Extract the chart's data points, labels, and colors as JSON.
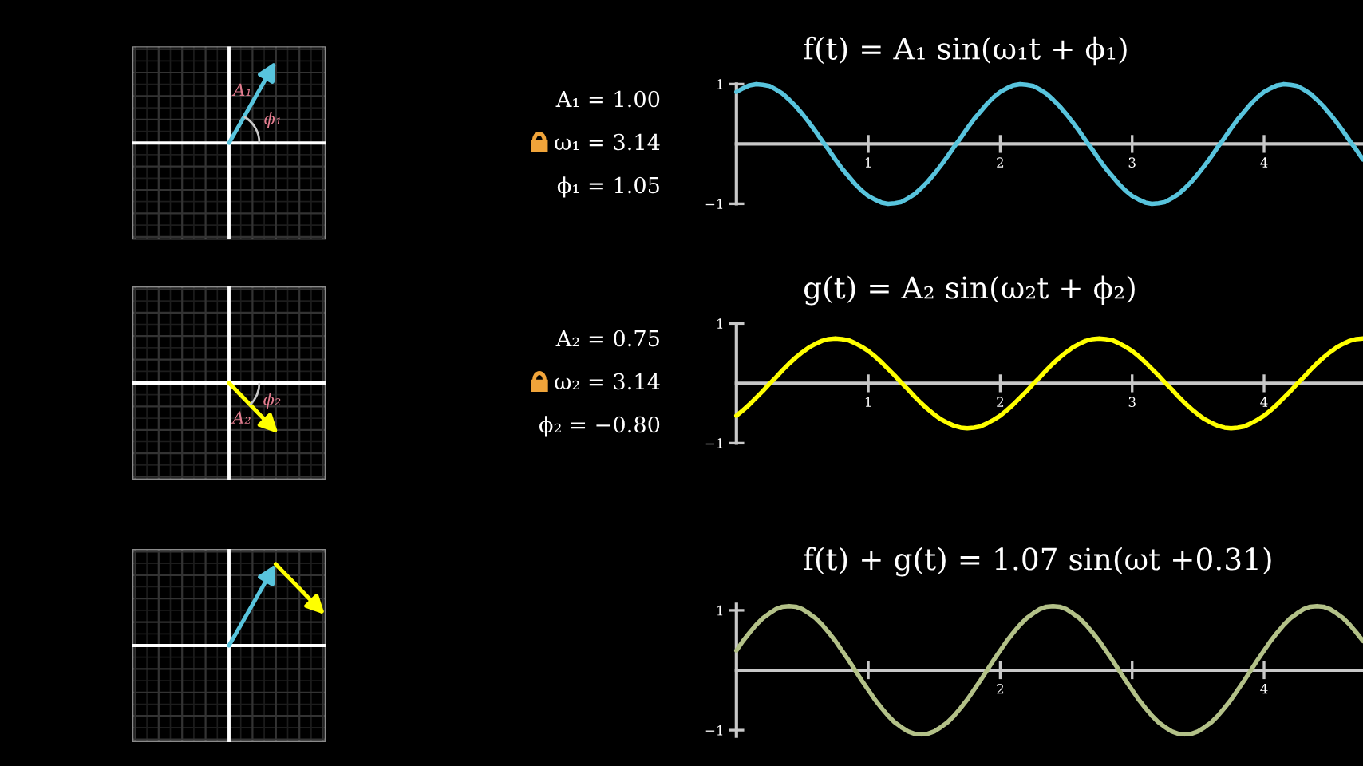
{
  "chart_data": [
    {
      "type": "other",
      "annotations": [
        "A₁",
        "ϕ₁"
      ]
    },
    {
      "type": "line",
      "title": "f(t) = A₁ sin(ω₁t + ϕ₁)",
      "annotations": [
        "A₁ = 1.00",
        "ω₁ = 3.14",
        "ϕ₁ = 1.05"
      ],
      "x": [
        0,
        0.05,
        0.1,
        0.15,
        0.2,
        0.25,
        0.3,
        0.35,
        0.4,
        0.45,
        0.5,
        0.55,
        0.6,
        0.65,
        0.7,
        0.75,
        0.8,
        0.85,
        0.9,
        0.95,
        1,
        1.05,
        1.1,
        1.15,
        1.2,
        1.25,
        1.3,
        1.35,
        1.4,
        1.45,
        1.5,
        1.55,
        1.6,
        1.65,
        1.7,
        1.75,
        1.8,
        1.85,
        1.9,
        1.95,
        2,
        2.05,
        2.1,
        2.15,
        2.2,
        2.25,
        2.3,
        2.35,
        2.4,
        2.45,
        2.5,
        2.55,
        2.6,
        2.65,
        2.7,
        2.75,
        2.8,
        2.85,
        2.9,
        2.95,
        3,
        3.05,
        3.1,
        3.15,
        3.2,
        3.25,
        3.3,
        3.35,
        3.4,
        3.45,
        3.5,
        3.55,
        3.6,
        3.65,
        3.7,
        3.75,
        3.8,
        3.85,
        3.9,
        3.95,
        4,
        4.05,
        4.1,
        4.15,
        4.2,
        4.25,
        4.3,
        4.35,
        4.4,
        4.45,
        4.5,
        4.55,
        4.6,
        4.65,
        4.7,
        4.75
      ],
      "series": [
        {
          "color": "#58c4dd",
          "values": [
            0.87,
            0.93,
            0.98,
            1.0,
            0.99,
            0.97,
            0.91,
            0.84,
            0.74,
            0.63,
            0.5,
            0.36,
            0.21,
            0.05,
            -0.1,
            -0.26,
            -0.41,
            -0.54,
            -0.67,
            -0.78,
            -0.87,
            -0.93,
            -0.98,
            -1.0,
            -0.99,
            -0.97,
            -0.91,
            -0.84,
            -0.74,
            -0.63,
            -0.5,
            -0.36,
            -0.21,
            -0.05,
            0.1,
            0.26,
            0.41,
            0.54,
            0.67,
            0.78,
            0.87,
            0.93,
            0.98,
            1.0,
            0.99,
            0.97,
            0.91,
            0.84,
            0.74,
            0.63,
            0.5,
            0.36,
            0.21,
            0.05,
            -0.1,
            -0.26,
            -0.41,
            -0.54,
            -0.67,
            -0.78,
            -0.87,
            -0.93,
            -0.98,
            -1.0,
            -0.99,
            -0.97,
            -0.91,
            -0.84,
            -0.74,
            -0.63,
            -0.5,
            -0.36,
            -0.21,
            -0.05,
            0.1,
            0.26,
            0.41,
            0.54,
            0.67,
            0.78,
            0.87,
            0.93,
            0.98,
            1.0,
            0.99,
            0.97,
            0.91,
            0.84,
            0.74,
            0.63,
            0.5,
            0.36,
            0.21,
            0.05,
            -0.1,
            -0.26
          ]
        }
      ],
      "xlim": [
        0,
        4.75
      ],
      "ylim": [
        -1,
        1
      ],
      "xticks": [
        1,
        2,
        3,
        4
      ],
      "yticks": [
        -1,
        1
      ]
    },
    {
      "type": "other",
      "annotations": [
        "A₂",
        "ϕ₂"
      ]
    },
    {
      "type": "line",
      "title": "g(t) = A₂ sin(ω₂t + ϕ₂)",
      "annotations": [
        "A₂ = 0.75",
        "ω₂ = 3.14",
        "ϕ₂ = −0.80"
      ],
      "x": [
        0,
        0.05,
        0.1,
        0.15,
        0.2,
        0.25,
        0.3,
        0.35,
        0.4,
        0.45,
        0.5,
        0.55,
        0.6,
        0.65,
        0.7,
        0.75,
        0.8,
        0.85,
        0.9,
        0.95,
        1,
        1.05,
        1.1,
        1.15,
        1.2,
        1.25,
        1.3,
        1.35,
        1.4,
        1.45,
        1.5,
        1.55,
        1.6,
        1.65,
        1.7,
        1.75,
        1.8,
        1.85,
        1.9,
        1.95,
        2,
        2.05,
        2.1,
        2.15,
        2.2,
        2.25,
        2.3,
        2.35,
        2.4,
        2.45,
        2.5,
        2.55,
        2.6,
        2.65,
        2.7,
        2.75,
        2.8,
        2.85,
        2.9,
        2.95,
        3,
        3.05,
        3.1,
        3.15,
        3.2,
        3.25,
        3.3,
        3.35,
        3.4,
        3.45,
        3.5,
        3.55,
        3.6,
        3.65,
        3.7,
        3.75,
        3.8,
        3.85,
        3.9,
        3.95,
        4,
        4.05,
        4.1,
        4.15,
        4.2,
        4.25,
        4.3,
        4.35,
        4.4,
        4.45,
        4.5,
        4.55,
        4.6,
        4.65,
        4.7,
        4.75
      ],
      "series": [
        {
          "color": "#ffff00",
          "values": [
            -0.54,
            -0.45,
            -0.35,
            -0.24,
            -0.13,
            -0.01,
            0.1,
            0.22,
            0.33,
            0.43,
            0.52,
            0.6,
            0.66,
            0.71,
            0.74,
            0.75,
            0.74,
            0.72,
            0.67,
            0.61,
            0.54,
            0.45,
            0.35,
            0.24,
            0.13,
            0.01,
            -0.1,
            -0.22,
            -0.33,
            -0.43,
            -0.52,
            -0.6,
            -0.66,
            -0.71,
            -0.74,
            -0.75,
            -0.74,
            -0.72,
            -0.67,
            -0.61,
            -0.54,
            -0.45,
            -0.35,
            -0.24,
            -0.13,
            -0.01,
            0.1,
            0.22,
            0.33,
            0.43,
            0.52,
            0.6,
            0.66,
            0.71,
            0.74,
            0.75,
            0.74,
            0.72,
            0.67,
            0.61,
            0.54,
            0.45,
            0.35,
            0.24,
            0.13,
            0.01,
            -0.1,
            -0.22,
            -0.33,
            -0.43,
            -0.52,
            -0.6,
            -0.66,
            -0.71,
            -0.74,
            -0.75,
            -0.74,
            -0.72,
            -0.67,
            -0.61,
            -0.54,
            -0.45,
            -0.35,
            -0.24,
            -0.13,
            -0.01,
            0.1,
            0.22,
            0.33,
            0.43,
            0.52,
            0.6,
            0.66,
            0.71,
            0.74,
            0.75
          ]
        }
      ],
      "xlim": [
        0,
        4.75
      ],
      "ylim": [
        -1,
        1
      ],
      "xticks": [
        1,
        2,
        3,
        4
      ],
      "yticks": [
        -1,
        1
      ]
    },
    {
      "type": "line",
      "title": "f(t) + g(t) = 1.07 sin(ωt +0.31)",
      "x": [
        0,
        0.05,
        0.1,
        0.15,
        0.2,
        0.25,
        0.3,
        0.35,
        0.4,
        0.45,
        0.5,
        0.55,
        0.6,
        0.65,
        0.7,
        0.75,
        0.8,
        0.85,
        0.9,
        0.95,
        1,
        1.05,
        1.1,
        1.15,
        1.2,
        1.25,
        1.3,
        1.35,
        1.4,
        1.45,
        1.5,
        1.55,
        1.6,
        1.65,
        1.7,
        1.75,
        1.8,
        1.85,
        1.9,
        1.95,
        2,
        2.05,
        2.1,
        2.15,
        2.2,
        2.25,
        2.3,
        2.35,
        2.4,
        2.45,
        2.5,
        2.55,
        2.6,
        2.65,
        2.7,
        2.75,
        2.8,
        2.85,
        2.9,
        2.95,
        3,
        3.05,
        3.1,
        3.15,
        3.2,
        3.25,
        3.3,
        3.35,
        3.4,
        3.45,
        3.5,
        3.55,
        3.6,
        3.65,
        3.7,
        3.75,
        3.8,
        3.85,
        3.9,
        3.95,
        4,
        4.05,
        4.1,
        4.15,
        4.2,
        4.25,
        4.3,
        4.35,
        4.4,
        4.45,
        4.5,
        4.55,
        4.6,
        4.65,
        4.7,
        4.75
      ],
      "series": [
        {
          "color": "#b3c188",
          "values": [
            0.33,
            0.49,
            0.63,
            0.76,
            0.87,
            0.95,
            1.02,
            1.06,
            1.07,
            1.06,
            1.02,
            0.95,
            0.87,
            0.76,
            0.63,
            0.49,
            0.33,
            0.17,
            0.0,
            -0.17,
            -0.33,
            -0.49,
            -0.63,
            -0.76,
            -0.87,
            -0.95,
            -1.02,
            -1.06,
            -1.07,
            -1.06,
            -1.02,
            -0.95,
            -0.87,
            -0.76,
            -0.63,
            -0.49,
            -0.33,
            -0.17,
            0.0,
            0.17,
            0.33,
            0.49,
            0.63,
            0.76,
            0.87,
            0.95,
            1.02,
            1.06,
            1.07,
            1.06,
            1.02,
            0.95,
            0.87,
            0.76,
            0.63,
            0.49,
            0.33,
            0.17,
            0.0,
            -0.17,
            -0.33,
            -0.49,
            -0.63,
            -0.76,
            -0.87,
            -0.95,
            -1.02,
            -1.06,
            -1.07,
            -1.06,
            -1.02,
            -0.95,
            -0.87,
            -0.76,
            -0.63,
            -0.49,
            -0.33,
            -0.17,
            0.0,
            0.17,
            0.33,
            0.49,
            0.63,
            0.76,
            0.87,
            0.95,
            1.02,
            1.06,
            1.07,
            1.06,
            1.02,
            0.95,
            0.87,
            0.76,
            0.63,
            0.49
          ]
        }
      ],
      "xlim": [
        0,
        4.75
      ],
      "ylim": [
        -1.1,
        1.1
      ],
      "xticks": [
        {
          "value": 1,
          "label": null
        },
        2,
        {
          "value": 3,
          "label": null
        },
        4
      ],
      "yticks": [
        -1,
        1
      ]
    }
  ]
}
